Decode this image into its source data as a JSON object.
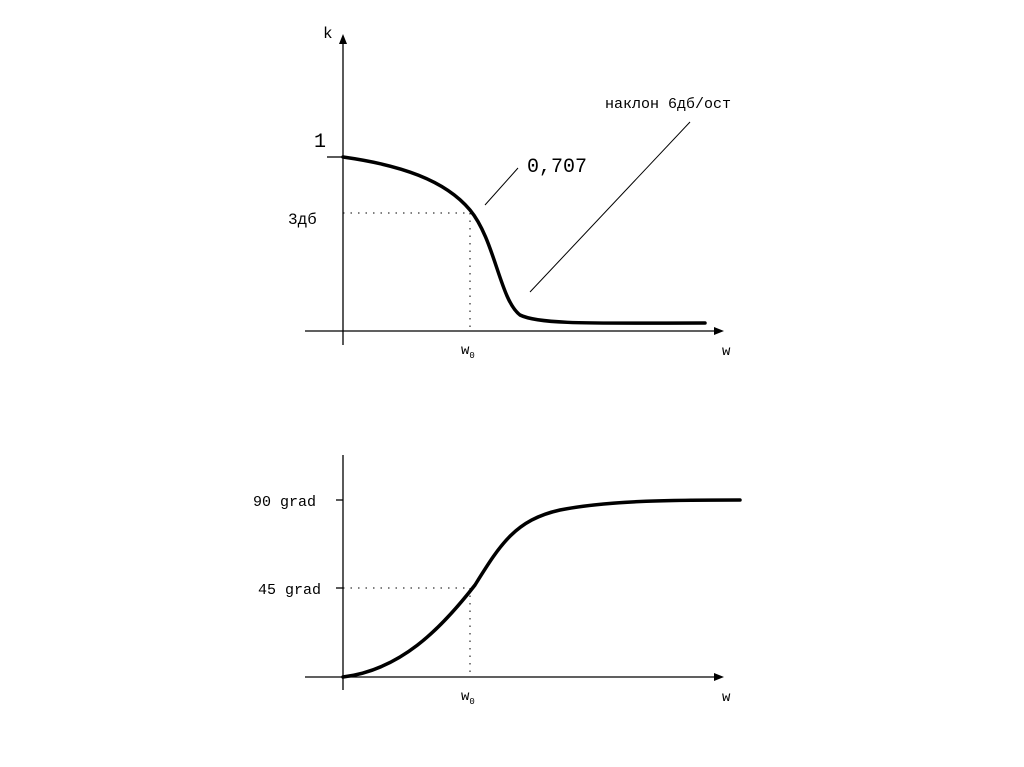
{
  "magnitude_plot": {
    "y_axis_label": "k",
    "y_unity_label": "1",
    "y_cutoff_label": "3дб",
    "cutoff_value_label": "0,707",
    "slope_label": "наклон 6дб/ост",
    "x_axis_label": "w",
    "x_marker": {
      "main": "w",
      "subscript": "0"
    }
  },
  "phase_plot": {
    "y_top_label": "90 grad",
    "y_mid_label": "45 grad",
    "x_axis_label": "w",
    "x_marker": {
      "main": "w",
      "subscript": "0"
    }
  }
}
